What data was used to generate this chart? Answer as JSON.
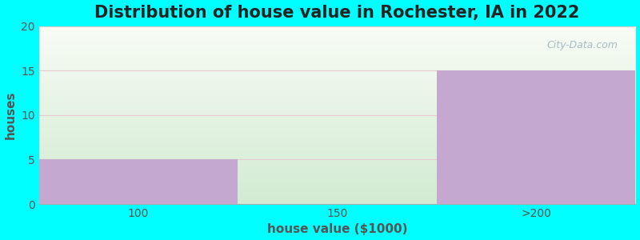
{
  "title": "Distribution of house value in Rochester, IA in 2022",
  "xlabel": "house value ($1000)",
  "ylabel": "houses",
  "categories": [
    "100",
    "150",
    ">200"
  ],
  "values": [
    5,
    0,
    15
  ],
  "bar_color": "#C4A8D0",
  "ylim": [
    0,
    20
  ],
  "yticks": [
    0,
    5,
    10,
    15,
    20
  ],
  "background_color": "#00FFFF",
  "grid_color": "#e8c8cc",
  "title_fontsize": 15,
  "axis_label_fontsize": 11,
  "tick_fontsize": 10,
  "watermark": "City-Data.com",
  "plot_bg_top": "#f5faf0",
  "plot_bg_bottom": "#dff0e0"
}
